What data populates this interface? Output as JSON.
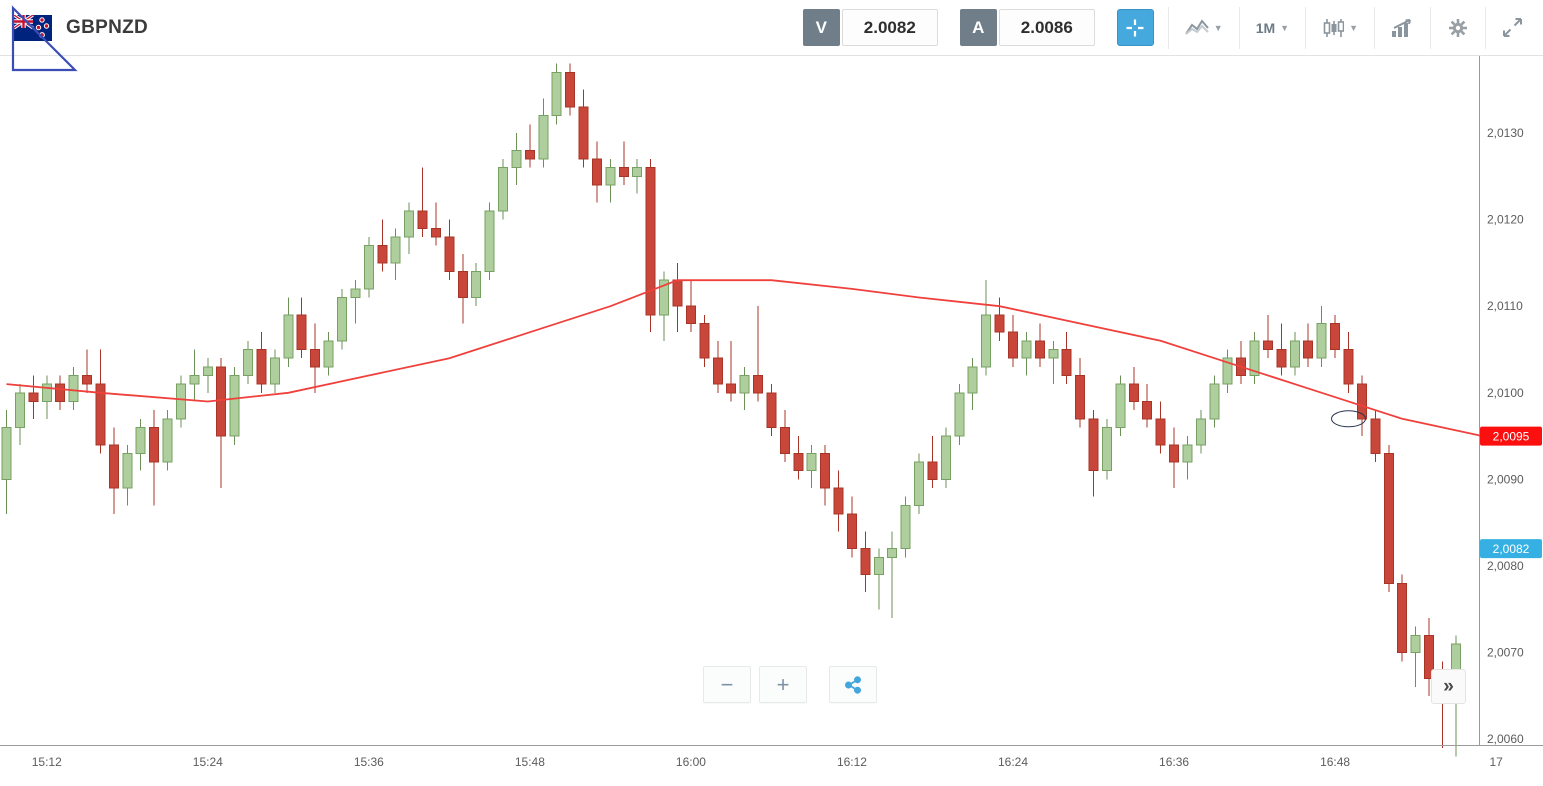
{
  "header": {
    "symbol": "GBPNZD",
    "bid_label": "V",
    "bid_value": "2.0082",
    "ask_label": "A",
    "ask_value": "2.0086",
    "timeframe": "1M",
    "accent_blue": "#45a9de"
  },
  "controls": {
    "zoom_out": "−",
    "zoom_in": "+",
    "collapse": "»"
  },
  "chart_data": {
    "type": "candlestick",
    "title": "GBPNZD 1M candlestick chart with moving average",
    "interval": "1M",
    "ylim": [
      2.0059,
      2.0139
    ],
    "grid": false,
    "colors": {
      "up_fill": "#aecf9d",
      "up_stroke": "#77a163",
      "up_wick": "#6b9158",
      "down_fill": "#c9473a",
      "down_stroke": "#a83428",
      "down_wick": "#a83428",
      "ma_line": "#f0403c",
      "axis_text": "#5c5c5c",
      "axis_line": "#9b9b9b"
    },
    "y_axis": {
      "ticks": [
        {
          "label": "2,0130",
          "p": 2.013
        },
        {
          "label": "2,0120",
          "p": 2.012
        },
        {
          "label": "2,0110",
          "p": 2.011
        },
        {
          "label": "2,0100",
          "p": 2.01
        },
        {
          "label": "2,0090",
          "p": 2.009
        },
        {
          "label": "2,0080",
          "p": 2.008
        },
        {
          "label": "2,0070",
          "p": 2.007
        },
        {
          "label": "2,0060",
          "p": 2.006
        }
      ]
    },
    "x_axis": {
      "ticks": [
        {
          "label": "15:12",
          "i": 3
        },
        {
          "label": "15:24",
          "i": 15
        },
        {
          "label": "15:36",
          "i": 27
        },
        {
          "label": "15:48",
          "i": 39
        },
        {
          "label": "16:00",
          "i": 51
        },
        {
          "label": "16:12",
          "i": 63
        },
        {
          "label": "16:24",
          "i": 75
        },
        {
          "label": "16:36",
          "i": 87
        },
        {
          "label": "16:48",
          "i": 99
        },
        {
          "label": "17",
          "i": 111
        }
      ]
    },
    "price_tags": [
      {
        "label": "2,0095",
        "price": 2.0095,
        "bg": "#fb0f0f",
        "fg": "#ffffff"
      },
      {
        "label": "2,0082",
        "price": 2.0082,
        "bg": "#36b0e3",
        "fg": "#ffffff"
      }
    ],
    "overlay": {
      "name": "moving-average",
      "points": [
        [
          0,
          2.0101
        ],
        [
          7,
          2.01
        ],
        [
          15,
          2.0099
        ],
        [
          21,
          2.01
        ],
        [
          27,
          2.0102
        ],
        [
          33,
          2.0104
        ],
        [
          39,
          2.0107
        ],
        [
          45,
          2.011
        ],
        [
          50,
          2.0113
        ],
        [
          57,
          2.0113
        ],
        [
          63,
          2.0112
        ],
        [
          68,
          2.0111
        ],
        [
          74,
          2.011
        ],
        [
          80,
          2.0108
        ],
        [
          86,
          2.0106
        ],
        [
          92,
          2.0103
        ],
        [
          98,
          2.01
        ],
        [
          104,
          2.0097
        ],
        [
          110,
          2.0095
        ]
      ]
    },
    "annotations": [
      {
        "type": "ellipse",
        "index": 100,
        "price": 2.0097
      }
    ],
    "candles": [
      [
        "15:09",
        2.009,
        2.0098,
        2.0086,
        2.0096
      ],
      [
        "15:10",
        2.0096,
        2.0101,
        2.0094,
        2.01
      ],
      [
        "15:11",
        2.01,
        2.0102,
        2.0097,
        2.0099
      ],
      [
        "15:12",
        2.0099,
        2.0102,
        2.0097,
        2.0101
      ],
      [
        "15:13",
        2.0101,
        2.0102,
        2.0098,
        2.0099
      ],
      [
        "15:14",
        2.0099,
        2.0103,
        2.0098,
        2.0102
      ],
      [
        "15:15",
        2.0102,
        2.0105,
        2.01,
        2.0101
      ],
      [
        "15:16",
        2.0101,
        2.0105,
        2.0093,
        2.0094
      ],
      [
        "15:17",
        2.0094,
        2.0096,
        2.0086,
        2.0089
      ],
      [
        "15:18",
        2.0089,
        2.0094,
        2.0087,
        2.0093
      ],
      [
        "15:19",
        2.0093,
        2.0097,
        2.0091,
        2.0096
      ],
      [
        "15:20",
        2.0096,
        2.0098,
        2.0087,
        2.0092
      ],
      [
        "15:21",
        2.0092,
        2.0098,
        2.0091,
        2.0097
      ],
      [
        "15:22",
        2.0097,
        2.0102,
        2.0096,
        2.0101
      ],
      [
        "15:23",
        2.0101,
        2.0105,
        2.0099,
        2.0102
      ],
      [
        "15:24",
        2.0102,
        2.0104,
        2.01,
        2.0103
      ],
      [
        "15:25",
        2.0103,
        2.0104,
        2.0089,
        2.0095
      ],
      [
        "15:26",
        2.0095,
        2.0103,
        2.0094,
        2.0102
      ],
      [
        "15:27",
        2.0102,
        2.0106,
        2.0101,
        2.0105
      ],
      [
        "15:28",
        2.0105,
        2.0107,
        2.01,
        2.0101
      ],
      [
        "15:29",
        2.0101,
        2.0105,
        2.01,
        2.0104
      ],
      [
        "15:30",
        2.0104,
        2.0111,
        2.0103,
        2.0109
      ],
      [
        "15:31",
        2.0109,
        2.0111,
        2.0104,
        2.0105
      ],
      [
        "15:32",
        2.0105,
        2.0108,
        2.01,
        2.0103
      ],
      [
        "15:33",
        2.0103,
        2.0107,
        2.0102,
        2.0106
      ],
      [
        "15:34",
        2.0106,
        2.0112,
        2.0105,
        2.0111
      ],
      [
        "15:35",
        2.0111,
        2.0113,
        2.0108,
        2.0112
      ],
      [
        "15:36",
        2.0112,
        2.0118,
        2.0111,
        2.0117
      ],
      [
        "15:37",
        2.0117,
        2.012,
        2.0114,
        2.0115
      ],
      [
        "15:38",
        2.0115,
        2.0119,
        2.0113,
        2.0118
      ],
      [
        "15:39",
        2.0118,
        2.0122,
        2.0116,
        2.0121
      ],
      [
        "15:40",
        2.0121,
        2.0126,
        2.0118,
        2.0119
      ],
      [
        "15:41",
        2.0119,
        2.0122,
        2.0117,
        2.0118
      ],
      [
        "15:42",
        2.0118,
        2.012,
        2.0113,
        2.0114
      ],
      [
        "15:43",
        2.0114,
        2.0116,
        2.0108,
        2.0111
      ],
      [
        "15:44",
        2.0111,
        2.0115,
        2.011,
        2.0114
      ],
      [
        "15:45",
        2.0114,
        2.0122,
        2.0113,
        2.0121
      ],
      [
        "15:46",
        2.0121,
        2.0127,
        2.012,
        2.0126
      ],
      [
        "15:47",
        2.0126,
        2.013,
        2.0124,
        2.0128
      ],
      [
        "15:48",
        2.0128,
        2.0131,
        2.0126,
        2.0127
      ],
      [
        "15:49",
        2.0127,
        2.0134,
        2.0126,
        2.0132
      ],
      [
        "15:50",
        2.0132,
        2.0138,
        2.0131,
        2.0137
      ],
      [
        "15:51",
        2.0137,
        2.0138,
        2.0132,
        2.0133
      ],
      [
        "15:52",
        2.0133,
        2.0135,
        2.0126,
        2.0127
      ],
      [
        "15:53",
        2.0127,
        2.0129,
        2.0122,
        2.0124
      ],
      [
        "15:54",
        2.0124,
        2.0127,
        2.0122,
        2.0126
      ],
      [
        "15:55",
        2.0126,
        2.0129,
        2.0124,
        2.0125
      ],
      [
        "15:56",
        2.0125,
        2.0127,
        2.0123,
        2.0126
      ],
      [
        "15:57",
        2.0126,
        2.0127,
        2.0107,
        2.0109
      ],
      [
        "15:58",
        2.0109,
        2.0114,
        2.0106,
        2.0113
      ],
      [
        "15:59",
        2.0113,
        2.0115,
        2.0107,
        2.011
      ],
      [
        "16:00",
        2.011,
        2.0113,
        2.0107,
        2.0108
      ],
      [
        "16:01",
        2.0108,
        2.0109,
        2.0103,
        2.0104
      ],
      [
        "16:02",
        2.0104,
        2.0106,
        2.01,
        2.0101
      ],
      [
        "16:03",
        2.0101,
        2.0106,
        2.0099,
        2.01
      ],
      [
        "16:04",
        2.01,
        2.0103,
        2.0098,
        2.0102
      ],
      [
        "16:05",
        2.0102,
        2.011,
        2.0099,
        2.01
      ],
      [
        "16:06",
        2.01,
        2.0101,
        2.0095,
        2.0096
      ],
      [
        "16:07",
        2.0096,
        2.0098,
        2.0092,
        2.0093
      ],
      [
        "16:08",
        2.0093,
        2.0095,
        2.009,
        2.0091
      ],
      [
        "16:09",
        2.0091,
        2.0094,
        2.0089,
        2.0093
      ],
      [
        "16:10",
        2.0093,
        2.0094,
        2.0087,
        2.0089
      ],
      [
        "16:11",
        2.0089,
        2.0091,
        2.0084,
        2.0086
      ],
      [
        "16:12",
        2.0086,
        2.0088,
        2.0081,
        2.0082
      ],
      [
        "16:13",
        2.0082,
        2.0084,
        2.0077,
        2.0079
      ],
      [
        "16:14",
        2.0079,
        2.0082,
        2.0075,
        2.0081
      ],
      [
        "16:15",
        2.0081,
        2.0084,
        2.0074,
        2.0082
      ],
      [
        "16:16",
        2.0082,
        2.0088,
        2.0081,
        2.0087
      ],
      [
        "16:17",
        2.0087,
        2.0093,
        2.0086,
        2.0092
      ],
      [
        "16:18",
        2.0092,
        2.0095,
        2.0089,
        2.009
      ],
      [
        "16:19",
        2.009,
        2.0096,
        2.0089,
        2.0095
      ],
      [
        "16:20",
        2.0095,
        2.0101,
        2.0094,
        2.01
      ],
      [
        "16:21",
        2.01,
        2.0104,
        2.0098,
        2.0103
      ],
      [
        "16:22",
        2.0103,
        2.0113,
        2.0102,
        2.0109
      ],
      [
        "16:23",
        2.0109,
        2.0111,
        2.0106,
        2.0107
      ],
      [
        "16:24",
        2.0107,
        2.0109,
        2.0103,
        2.0104
      ],
      [
        "16:25",
        2.0104,
        2.0107,
        2.0102,
        2.0106
      ],
      [
        "16:26",
        2.0106,
        2.0108,
        2.0103,
        2.0104
      ],
      [
        "16:27",
        2.0104,
        2.0106,
        2.0101,
        2.0105
      ],
      [
        "16:28",
        2.0105,
        2.0107,
        2.0101,
        2.0102
      ],
      [
        "16:29",
        2.0102,
        2.0104,
        2.0096,
        2.0097
      ],
      [
        "16:30",
        2.0097,
        2.0098,
        2.0088,
        2.0091
      ],
      [
        "16:31",
        2.0091,
        2.0097,
        2.009,
        2.0096
      ],
      [
        "16:32",
        2.0096,
        2.0102,
        2.0095,
        2.0101
      ],
      [
        "16:33",
        2.0101,
        2.0103,
        2.0098,
        2.0099
      ],
      [
        "16:34",
        2.0099,
        2.0101,
        2.0096,
        2.0097
      ],
      [
        "16:35",
        2.0097,
        2.0099,
        2.0093,
        2.0094
      ],
      [
        "16:36",
        2.0094,
        2.0096,
        2.0089,
        2.0092
      ],
      [
        "16:37",
        2.0092,
        2.0095,
        2.009,
        2.0094
      ],
      [
        "16:38",
        2.0094,
        2.0098,
        2.0093,
        2.0097
      ],
      [
        "16:39",
        2.0097,
        2.0102,
        2.0096,
        2.0101
      ],
      [
        "16:40",
        2.0101,
        2.0105,
        2.01,
        2.0104
      ],
      [
        "16:41",
        2.0104,
        2.0106,
        2.0101,
        2.0102
      ],
      [
        "16:42",
        2.0102,
        2.0107,
        2.0101,
        2.0106
      ],
      [
        "16:43",
        2.0106,
        2.0109,
        2.0104,
        2.0105
      ],
      [
        "16:44",
        2.0105,
        2.0108,
        2.0102,
        2.0103
      ],
      [
        "16:45",
        2.0103,
        2.0107,
        2.0102,
        2.0106
      ],
      [
        "16:46",
        2.0106,
        2.0108,
        2.0103,
        2.0104
      ],
      [
        "16:47",
        2.0104,
        2.011,
        2.0103,
        2.0108
      ],
      [
        "16:48",
        2.0108,
        2.0109,
        2.0104,
        2.0105
      ],
      [
        "16:49",
        2.0105,
        2.0107,
        2.01,
        2.0101
      ],
      [
        "16:50",
        2.0101,
        2.0102,
        2.0095,
        2.0097
      ],
      [
        "16:51",
        2.0097,
        2.0098,
        2.0092,
        2.0093
      ],
      [
        "16:52",
        2.0093,
        2.0094,
        2.0077,
        2.0078
      ],
      [
        "16:53",
        2.0078,
        2.0079,
        2.0069,
        2.007
      ],
      [
        "16:54",
        2.007,
        2.0073,
        2.0066,
        2.0072
      ],
      [
        "16:55",
        2.0072,
        2.0074,
        2.0065,
        2.0067
      ],
      [
        "16:56",
        2.0067,
        2.0069,
        2.0059,
        2.0065
      ],
      [
        "16:57",
        2.0065,
        2.0072,
        2.0058,
        2.0071
      ]
    ]
  }
}
